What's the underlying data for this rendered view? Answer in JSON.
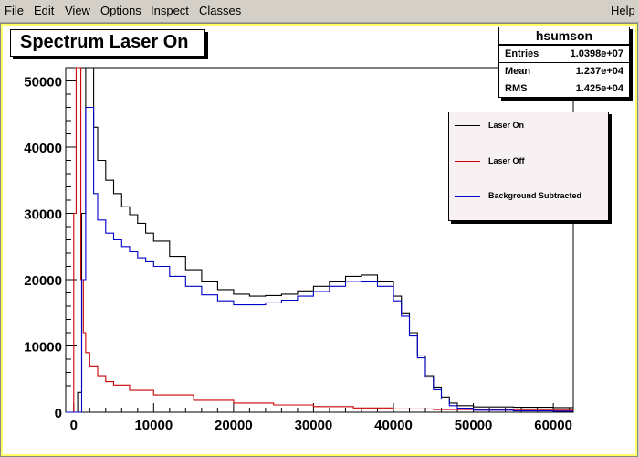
{
  "menu": {
    "items": [
      "File",
      "Edit",
      "View",
      "Options",
      "Inspect",
      "Classes"
    ],
    "help": "Help"
  },
  "canvas": {
    "title": "Spectrum Laser On",
    "stats": {
      "name": "hsumson",
      "rows": [
        {
          "key": "Entries",
          "value": "1.0398e+07"
        },
        {
          "key": "Mean",
          "value": "1.237e+04"
        },
        {
          "key": "RMS",
          "value": "1.425e+04"
        }
      ]
    }
  },
  "colors": {
    "laser_on": "#000000",
    "laser_off": "#cc0000",
    "background_subtracted": "#0000cc",
    "frame": "#ffff66"
  },
  "chart_data": {
    "type": "line",
    "title": "Spectrum Laser On",
    "xlabel": "",
    "ylabel": "",
    "xlim": [
      -1000,
      62500
    ],
    "ylim": [
      0,
      52000
    ],
    "xticks": [
      0,
      10000,
      20000,
      30000,
      40000,
      50000,
      60000
    ],
    "yticks": [
      0,
      10000,
      20000,
      30000,
      40000,
      50000
    ],
    "xtick_labels": [
      "0",
      "10000",
      "20000",
      "30000",
      "40000",
      "50000",
      "60000"
    ],
    "ytick_labels": [
      "0",
      "10000",
      "20000",
      "30000",
      "40000",
      "50000"
    ],
    "legend_position": "top-right",
    "series": [
      {
        "name": "Laser On",
        "color": "#000000",
        "points": [
          [
            -1000,
            0
          ],
          [
            0,
            0
          ],
          [
            500,
            3000
          ],
          [
            1000,
            30000
          ],
          [
            1500,
            52000
          ],
          [
            2000,
            52000
          ],
          [
            2500,
            43000
          ],
          [
            3000,
            38000
          ],
          [
            4000,
            35000
          ],
          [
            5000,
            33000
          ],
          [
            6000,
            31000
          ],
          [
            7000,
            29800
          ],
          [
            8000,
            28500
          ],
          [
            9000,
            27000
          ],
          [
            10000,
            25800
          ],
          [
            12000,
            23500
          ],
          [
            14000,
            21500
          ],
          [
            16000,
            19800
          ],
          [
            18000,
            18500
          ],
          [
            20000,
            17800
          ],
          [
            22000,
            17500
          ],
          [
            24000,
            17600
          ],
          [
            26000,
            17800
          ],
          [
            28000,
            18300
          ],
          [
            30000,
            19000
          ],
          [
            32000,
            19800
          ],
          [
            34000,
            20500
          ],
          [
            36000,
            20700
          ],
          [
            38000,
            19800
          ],
          [
            40000,
            17500
          ],
          [
            41000,
            15000
          ],
          [
            42000,
            12000
          ],
          [
            43000,
            8500
          ],
          [
            44000,
            5500
          ],
          [
            45000,
            3800
          ],
          [
            46000,
            2300
          ],
          [
            47000,
            1400
          ],
          [
            48000,
            1000
          ],
          [
            50000,
            800
          ],
          [
            55000,
            750
          ],
          [
            60000,
            700
          ],
          [
            62500,
            700
          ]
        ]
      },
      {
        "name": "Laser Off",
        "color": "#cc0000",
        "points": [
          [
            -1000,
            0
          ],
          [
            -200,
            0
          ],
          [
            0,
            30000
          ],
          [
            300,
            52000
          ],
          [
            600,
            52000
          ],
          [
            900,
            20000
          ],
          [
            1200,
            12000
          ],
          [
            1500,
            9000
          ],
          [
            2000,
            7000
          ],
          [
            3000,
            5500
          ],
          [
            4000,
            4600
          ],
          [
            5000,
            4100
          ],
          [
            7000,
            3300
          ],
          [
            10000,
            2600
          ],
          [
            15000,
            1800
          ],
          [
            20000,
            1400
          ],
          [
            25000,
            1100
          ],
          [
            30000,
            850
          ],
          [
            35000,
            650
          ],
          [
            40000,
            500
          ],
          [
            45000,
            400
          ],
          [
            50000,
            350
          ],
          [
            55000,
            300
          ],
          [
            60000,
            300
          ],
          [
            62500,
            300
          ]
        ]
      },
      {
        "name": "Background Subtracted",
        "color": "#0000cc",
        "points": [
          [
            -1000,
            0
          ],
          [
            500,
            0
          ],
          [
            1000,
            20000
          ],
          [
            1500,
            46000
          ],
          [
            2000,
            46000
          ],
          [
            2500,
            33000
          ],
          [
            3000,
            29000
          ],
          [
            4000,
            27000
          ],
          [
            5000,
            26000
          ],
          [
            6000,
            25000
          ],
          [
            7000,
            24200
          ],
          [
            8000,
            23300
          ],
          [
            9000,
            22700
          ],
          [
            10000,
            22000
          ],
          [
            12000,
            20500
          ],
          [
            14000,
            19000
          ],
          [
            16000,
            17700
          ],
          [
            18000,
            16800
          ],
          [
            20000,
            16200
          ],
          [
            22000,
            16200
          ],
          [
            24000,
            16500
          ],
          [
            26000,
            16900
          ],
          [
            28000,
            17500
          ],
          [
            30000,
            18200
          ],
          [
            32000,
            19000
          ],
          [
            34000,
            19700
          ],
          [
            36000,
            19800
          ],
          [
            38000,
            19000
          ],
          [
            40000,
            16800
          ],
          [
            41000,
            14500
          ],
          [
            42000,
            11500
          ],
          [
            43000,
            8200
          ],
          [
            44000,
            5300
          ],
          [
            45000,
            3400
          ],
          [
            46000,
            2000
          ],
          [
            47000,
            1000
          ],
          [
            48000,
            600
          ],
          [
            50000,
            300
          ],
          [
            55000,
            200
          ],
          [
            60000,
            150
          ],
          [
            62500,
            150
          ]
        ]
      }
    ]
  }
}
